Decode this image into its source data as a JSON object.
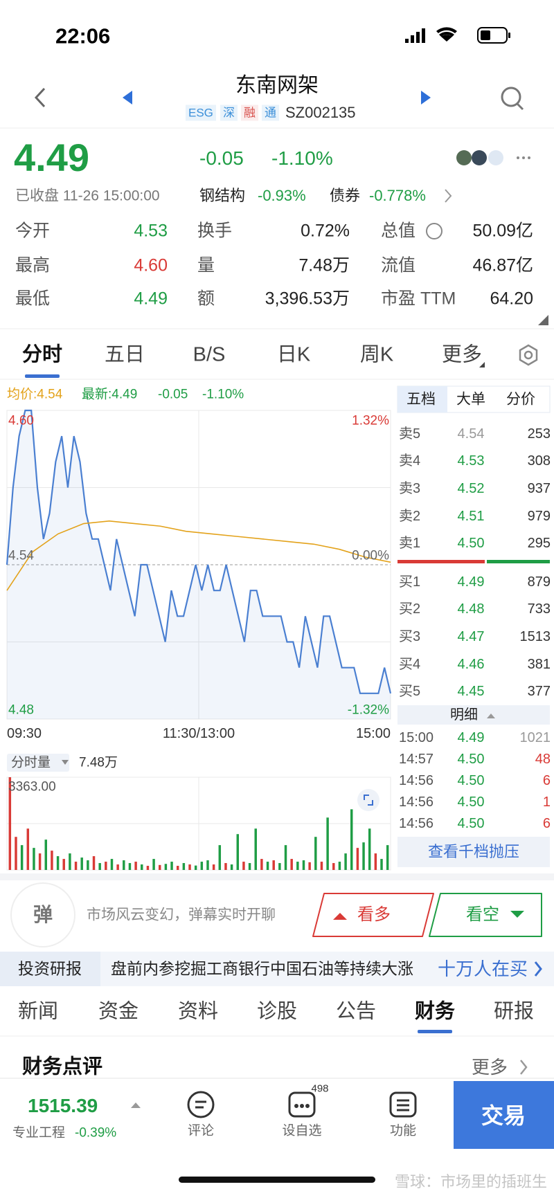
{
  "status_bar": {
    "time": "22:06"
  },
  "header": {
    "title": "东南网架",
    "tags": [
      {
        "text": "ESG",
        "color": "#3b8fd9"
      },
      {
        "text": "深",
        "color": "#3b8fd9"
      },
      {
        "text": "融",
        "color": "#d9534f"
      },
      {
        "text": "通",
        "color": "#3b8fd9"
      }
    ],
    "code": "SZ002135"
  },
  "quote": {
    "price": "4.49",
    "change": "-0.05",
    "change_pct": "-1.10%",
    "status": "已收盘 11-26 15:00:00",
    "sectors": [
      {
        "name": "钢结构",
        "change": "-0.93%"
      },
      {
        "name": "债券",
        "change": "-0.778%"
      }
    ],
    "stats": [
      [
        {
          "label": "今开",
          "value": "4.53",
          "color": "#1f9d45"
        },
        {
          "label": "换手",
          "value": "0.72%"
        },
        {
          "label": "总值",
          "value": "50.09亿"
        }
      ],
      [
        {
          "label": "最高",
          "value": "4.60",
          "color": "#d93a36"
        },
        {
          "label": "量",
          "value": "7.48万"
        },
        {
          "label": "流值",
          "value": "46.87亿"
        }
      ],
      [
        {
          "label": "最低",
          "value": "4.49",
          "color": "#1f9d45"
        },
        {
          "label": "额",
          "value": "3,396.53万"
        },
        {
          "label": "市盈 TTM",
          "value": "64.20"
        }
      ]
    ]
  },
  "chart_tabs": [
    "分时",
    "五日",
    "B/S",
    "日K",
    "周K",
    "更多"
  ],
  "chart_data": [
    {
      "type": "line",
      "legend": {
        "avg": "均价:4.54",
        "latest": "最新:4.49",
        "change": "-0.05",
        "change_pct": "-1.10%"
      },
      "ylim": [
        4.48,
        4.6
      ],
      "yticks": [
        {
          "value": 4.6,
          "label": "4.60"
        },
        {
          "value": 4.54,
          "label": "4.54"
        },
        {
          "value": 4.48,
          "label": "4.48"
        }
      ],
      "ytick_colors": [
        "#d93a36",
        "#666666",
        "#1f9d45"
      ],
      "y2lim": [
        -1.32,
        1.32
      ],
      "y2ticks": [
        {
          "value": 1.32,
          "label": "1.32%"
        },
        {
          "value": 0,
          "label": "0.00%"
        },
        {
          "value": -1.32,
          "label": "-1.32%"
        }
      ],
      "time_labels": [
        "09:30",
        "11:30/13:00",
        "15:00"
      ],
      "series": [
        {
          "color": "#4a7fd1",
          "values": [
            4.54,
            4.57,
            4.59,
            4.6,
            4.6,
            4.57,
            4.55,
            4.56,
            4.58,
            4.59,
            4.57,
            4.59,
            4.58,
            4.56,
            4.55,
            4.55,
            4.54,
            4.53,
            4.55,
            4.54,
            4.53,
            4.52,
            4.54,
            4.54,
            4.53,
            4.52,
            4.51,
            4.53,
            4.52,
            4.52,
            4.53,
            4.54,
            4.53,
            4.54,
            4.53,
            4.53,
            4.54,
            4.53,
            4.52,
            4.51,
            4.53,
            4.53,
            4.52,
            4.52,
            4.52,
            4.52,
            4.51,
            4.51,
            4.5,
            4.52,
            4.51,
            4.5,
            4.52,
            4.52,
            4.51,
            4.5,
            4.5,
            4.5,
            4.49,
            4.49,
            4.49,
            4.49,
            4.5,
            4.49
          ]
        },
        {
          "color": "#e3a21a",
          "values": [
            4.53,
            4.545,
            4.552,
            4.556,
            4.557,
            4.556,
            4.555,
            4.553,
            4.552,
            4.551,
            4.55,
            4.549,
            4.548,
            4.546,
            4.543,
            4.541
          ]
        }
      ]
    },
    {
      "type": "bar",
      "label": "分时量",
      "total": "7.48万",
      "ylim": [
        0,
        3363
      ],
      "yticks": [
        {
          "value": 3363,
          "label": "3363.00"
        }
      ],
      "values": [
        3363,
        1200,
        900,
        1500,
        800,
        600,
        1100,
        700,
        500,
        400,
        600,
        300,
        450,
        350,
        500,
        250,
        300,
        400,
        200,
        350,
        250,
        300,
        200,
        150,
        400,
        180,
        220,
        300,
        150,
        250,
        200,
        160,
        300,
        350,
        200,
        900,
        250,
        200,
        1300,
        300,
        250,
        1500,
        400,
        300,
        350,
        250,
        900,
        400,
        300,
        350,
        280,
        1200,
        300,
        1900,
        250,
        300,
        600,
        2200,
        800,
        1000,
        1500,
        600,
        400,
        900
      ],
      "colors": [
        "#d93a36",
        "#d93a36",
        "#1f9d45",
        "#d93a36",
        "#1f9d45",
        "#d93a36",
        "#1f9d45",
        "#d93a36",
        "#1f9d45",
        "#d93a36",
        "#1f9d45",
        "#d93a36",
        "#1f9d45",
        "#1f9d45",
        "#d93a36",
        "#1f9d45",
        "#d93a36",
        "#1f9d45",
        "#d93a36",
        "#1f9d45",
        "#1f9d45",
        "#d93a36",
        "#1f9d45",
        "#d93a36",
        "#1f9d45",
        "#d93a36",
        "#1f9d45",
        "#1f9d45",
        "#d93a36",
        "#1f9d45",
        "#d93a36",
        "#1f9d45",
        "#1f9d45",
        "#1f9d45",
        "#d93a36",
        "#1f9d45",
        "#d93a36",
        "#1f9d45",
        "#1f9d45",
        "#d93a36",
        "#1f9d45",
        "#1f9d45",
        "#d93a36",
        "#1f9d45",
        "#d93a36",
        "#1f9d45",
        "#1f9d45",
        "#d93a36",
        "#1f9d45",
        "#1f9d45",
        "#d93a36",
        "#1f9d45",
        "#d93a36",
        "#1f9d45",
        "#d93a36",
        "#1f9d45",
        "#1f9d45",
        "#1f9d45",
        "#d93a36",
        "#1f9d45",
        "#1f9d45",
        "#d93a36",
        "#1f9d45",
        "#1f9d45"
      ]
    }
  ],
  "order_book": {
    "tabs": [
      "五档",
      "大单",
      "分价"
    ],
    "asks": [
      {
        "label": "卖5",
        "price": "4.54",
        "volume": "253",
        "color": "#999999"
      },
      {
        "label": "卖4",
        "price": "4.53",
        "volume": "308",
        "color": "#1f9d45"
      },
      {
        "label": "卖3",
        "price": "4.52",
        "volume": "937",
        "color": "#1f9d45"
      },
      {
        "label": "卖2",
        "price": "4.51",
        "volume": "979",
        "color": "#1f9d45"
      },
      {
        "label": "卖1",
        "price": "4.50",
        "volume": "295",
        "color": "#1f9d45"
      }
    ],
    "bids": [
      {
        "label": "买1",
        "price": "4.49",
        "volume": "879",
        "color": "#1f9d45"
      },
      {
        "label": "买2",
        "price": "4.48",
        "volume": "733",
        "color": "#1f9d45"
      },
      {
        "label": "买3",
        "price": "4.47",
        "volume": "1513",
        "color": "#1f9d45"
      },
      {
        "label": "买4",
        "price": "4.46",
        "volume": "381",
        "color": "#1f9d45"
      },
      {
        "label": "买5",
        "price": "4.45",
        "volume": "377",
        "color": "#1f9d45"
      }
    ],
    "detail_title": "明细",
    "details": [
      {
        "time": "15:00",
        "price": "4.49",
        "volume": "1021",
        "color": "#999999"
      },
      {
        "time": "14:57",
        "price": "4.50",
        "volume": "48",
        "color": "#d93a36"
      },
      {
        "time": "14:56",
        "price": "4.50",
        "volume": "6",
        "color": "#d93a36"
      },
      {
        "time": "14:56",
        "price": "4.50",
        "volume": "1",
        "color": "#d93a36"
      },
      {
        "time": "14:56",
        "price": "4.50",
        "volume": "6",
        "color": "#d93a36"
      }
    ],
    "button": "查看千档抛压"
  },
  "danmaku": {
    "icon": "弹",
    "text": "市场风云变幻，弹幕实时开聊",
    "bull": "看多",
    "bear": "看空"
  },
  "research": {
    "label": "投资研报",
    "text": "盘前内参挖掘工商银行中国石油等持续大涨",
    "link": "十万人在买"
  },
  "news_tabs": {
    "items": [
      "新闻",
      "资金",
      "资料",
      "诊股",
      "公告",
      "财务",
      "研报"
    ],
    "active": 5
  },
  "section": {
    "title": "财务点评",
    "more": "更多"
  },
  "bottom_bar": {
    "index_value": "1515.39",
    "index_name": "专业工程",
    "index_change": "-0.39%",
    "items": [
      {
        "label": "评论"
      },
      {
        "label": "设自选",
        "badge": "498"
      },
      {
        "label": "功能"
      }
    ],
    "trade": "交易"
  },
  "watermark": "雪球：市场里的插班生"
}
